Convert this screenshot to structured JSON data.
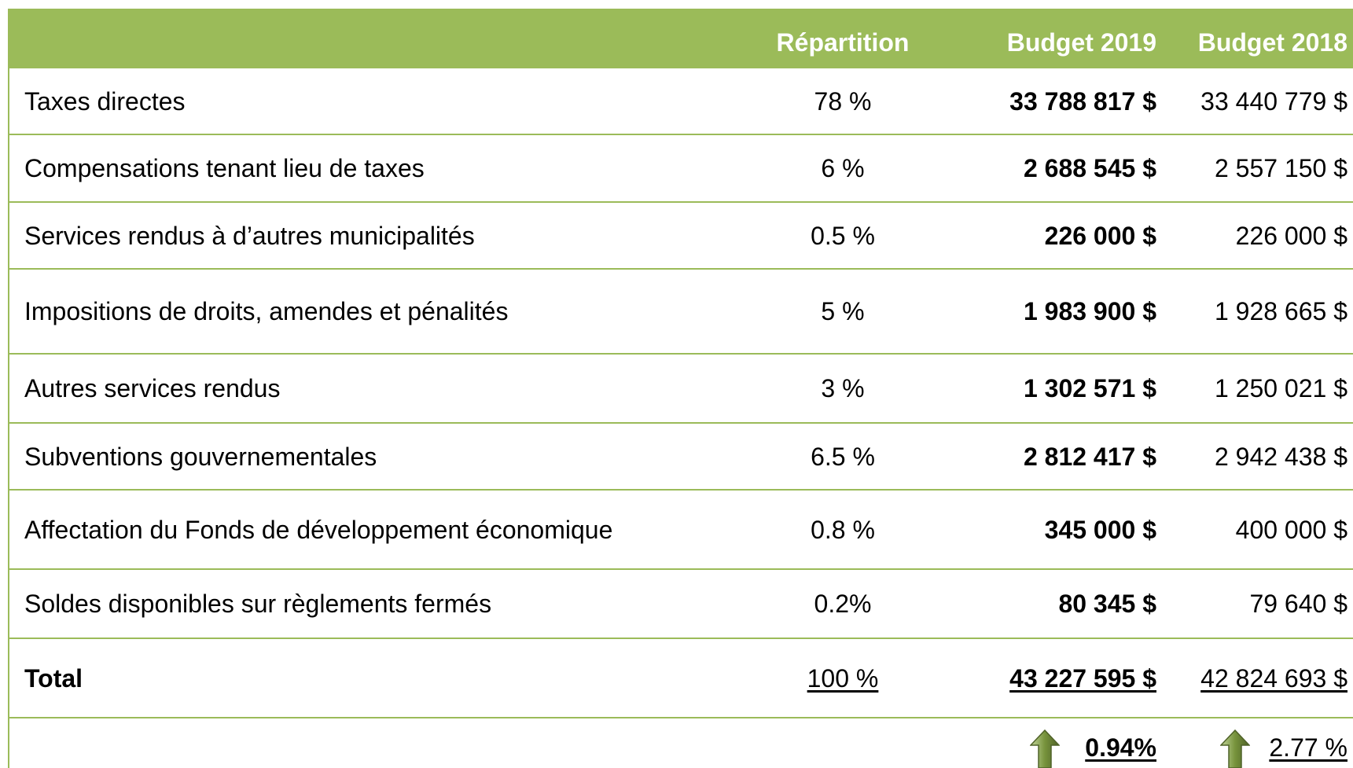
{
  "table": {
    "header": [
      "",
      "Répartition",
      "Budget 2019",
      "Budget 2018"
    ],
    "rows": [
      [
        "Taxes directes",
        "78 %",
        "33 788 817 $",
        "33 440 779 $"
      ],
      [
        "Compensations tenant lieu de taxes",
        "6 %",
        "2 688 545 $",
        "2 557 150 $"
      ],
      [
        "Services rendus à d’autres municipalités",
        "0.5 %",
        "226 000 $",
        "226 000 $"
      ],
      [
        "Impositions de droits, amendes et pénalités",
        "5 %",
        "1 983 900 $",
        "1 928 665 $"
      ],
      [
        "Autres services rendus",
        "3 %",
        "1 302 571 $",
        "1 250 021 $"
      ],
      [
        "Subventions gouvernementales",
        "6.5 %",
        "2 812 417 $",
        "2 942 438 $"
      ],
      [
        "Affectation du Fonds de développement économique",
        "0.8 %",
        "345 000 $",
        "400 000 $"
      ],
      [
        "Soldes disponibles sur règlements fermés",
        "0.2%",
        "80 345 $",
        "79 640 $"
      ]
    ],
    "total": [
      "Total",
      "100 %",
      "43 227 595 $",
      "42 824 693 $"
    ],
    "growth": [
      "0.94%",
      "2.77 %"
    ]
  }
}
